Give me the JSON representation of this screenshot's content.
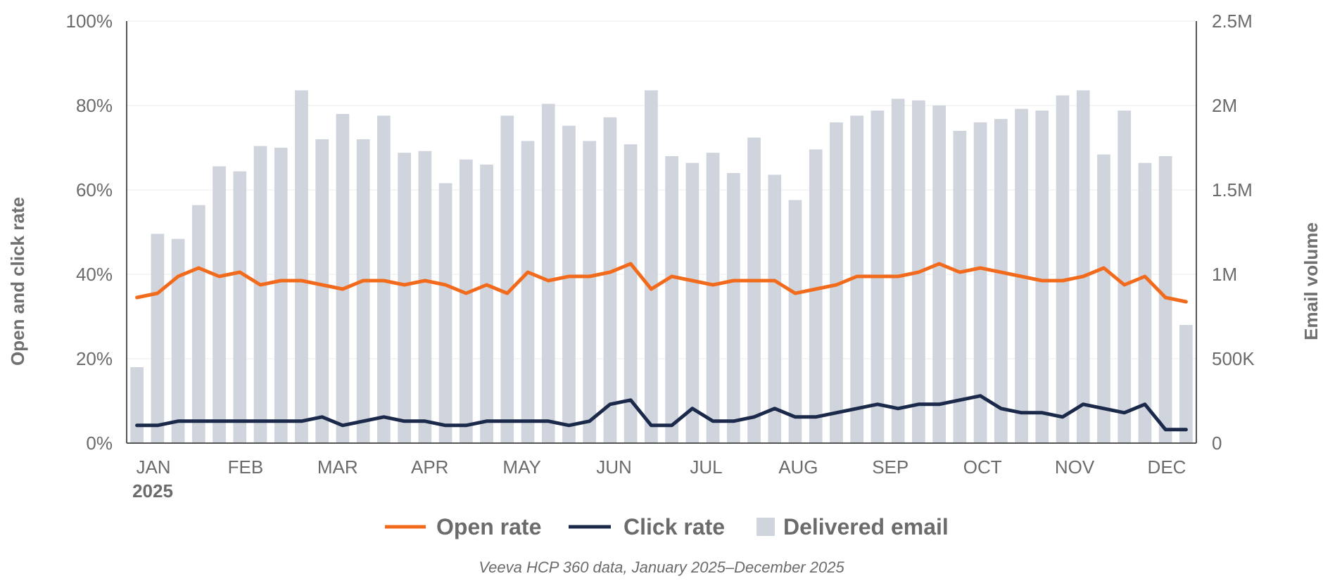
{
  "chart_data": {
    "type": "bar+line",
    "months": [
      "JAN",
      "FEB",
      "MAR",
      "APR",
      "MAY",
      "JUN",
      "JUL",
      "AUG",
      "SEP",
      "OCT",
      "NOV",
      "DEC"
    ],
    "year_label": "2025",
    "left_axis": {
      "title": "Open and click rate",
      "ticks": [
        "0%",
        "20%",
        "40%",
        "60%",
        "80%",
        "100%"
      ],
      "range": [
        0,
        100
      ]
    },
    "right_axis": {
      "title": "Email volume",
      "ticks": [
        "0",
        "500K",
        "1M",
        "1.5M",
        "2M",
        "2.5M"
      ],
      "range": [
        0,
        2500000
      ]
    },
    "series": [
      {
        "name": "Delivered email",
        "type": "bar",
        "axis": "right",
        "color": "#d0d4dc",
        "values": [
          450000,
          1240000,
          1210000,
          1410000,
          1640000,
          1610000,
          1760000,
          1750000,
          2090000,
          1800000,
          1950000,
          1800000,
          1940000,
          1720000,
          1730000,
          1540000,
          1680000,
          1650000,
          1940000,
          1790000,
          2010000,
          1880000,
          1790000,
          1930000,
          1770000,
          2090000,
          1700000,
          1660000,
          1720000,
          1600000,
          1810000,
          1590000,
          1440000,
          1740000,
          1900000,
          1940000,
          1970000,
          2040000,
          2030000,
          2000000,
          1850000,
          1900000,
          1920000,
          1980000,
          1970000,
          2060000,
          2090000,
          1710000,
          1970000,
          1660000,
          1700000,
          700000
        ]
      },
      {
        "name": "Open rate",
        "type": "line",
        "axis": "left",
        "color": "#f26b1d",
        "values": [
          34.5,
          35.5,
          39.5,
          41.5,
          39.5,
          40.5,
          37.5,
          38.5,
          38.5,
          37.5,
          36.5,
          38.5,
          38.5,
          37.5,
          38.5,
          37.5,
          35.5,
          37.5,
          35.5,
          40.5,
          38.5,
          39.5,
          39.5,
          40.5,
          42.5,
          36.5,
          39.5,
          38.5,
          37.5,
          38.5,
          38.5,
          38.5,
          35.5,
          36.5,
          37.5,
          39.5,
          39.5,
          39.5,
          40.5,
          42.5,
          40.5,
          41.5,
          40.5,
          39.5,
          38.5,
          38.5,
          39.5,
          41.5,
          37.5,
          39.5,
          34.5,
          33.5
        ]
      },
      {
        "name": "Click rate",
        "type": "line",
        "axis": "left",
        "color": "#1b2a4a",
        "values": [
          4.2,
          4.2,
          5.2,
          5.2,
          5.2,
          5.2,
          5.2,
          5.2,
          5.2,
          6.2,
          4.2,
          5.2,
          6.2,
          5.2,
          5.2,
          4.2,
          4.2,
          5.2,
          5.2,
          5.2,
          5.2,
          4.2,
          5.2,
          9.2,
          10.2,
          4.2,
          4.2,
          8.2,
          5.2,
          5.2,
          6.2,
          8.2,
          6.2,
          6.2,
          7.2,
          8.2,
          9.2,
          8.2,
          9.2,
          9.2,
          10.2,
          11.2,
          8.2,
          7.2,
          7.2,
          6.2,
          9.2,
          8.2,
          7.2,
          9.2,
          3.2,
          3.2
        ]
      }
    ],
    "legend": [
      "Open rate",
      "Click rate",
      "Delivered email"
    ],
    "source_note": "Veeva HCP 360 data, January 2025–December 2025"
  }
}
